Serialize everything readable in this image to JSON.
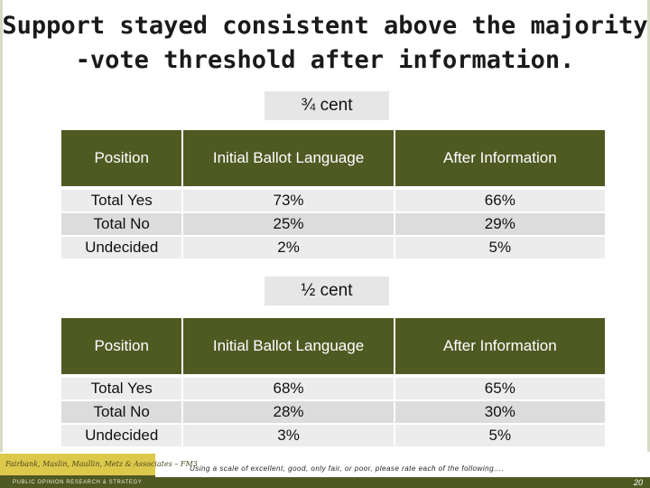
{
  "slide": {
    "title_line1": "Support stayed consistent above the majority",
    "title_line2": "-vote threshold after information.",
    "footnote": "Using a scale of excellent, good, only fair, or poor, please rate each of the following….",
    "page_number": "20",
    "logo_name": "Fairbank, Maslin, Maullin, Metz & Associates – FM3",
    "logo_tagline": "PUBLIC OPINION RESEARCH & STRATEGY",
    "accent_color": "#4f5a23"
  },
  "tables": [
    {
      "label": "¾ cent",
      "headers": [
        "Position",
        "Initial Ballot Language",
        "After Information"
      ],
      "rows": [
        [
          "Total Yes",
          "73%",
          "66%"
        ],
        [
          "Total No",
          "25%",
          "29%"
        ],
        [
          "Undecided",
          "2%",
          "5%"
        ]
      ]
    },
    {
      "label": "½ cent",
      "headers": [
        "Position",
        "Initial Ballot Language",
        "After Information"
      ],
      "rows": [
        [
          "Total Yes",
          "68%",
          "65%"
        ],
        [
          "Total No",
          "28%",
          "30%"
        ],
        [
          "Undecided",
          "3%",
          "5%"
        ]
      ]
    }
  ]
}
